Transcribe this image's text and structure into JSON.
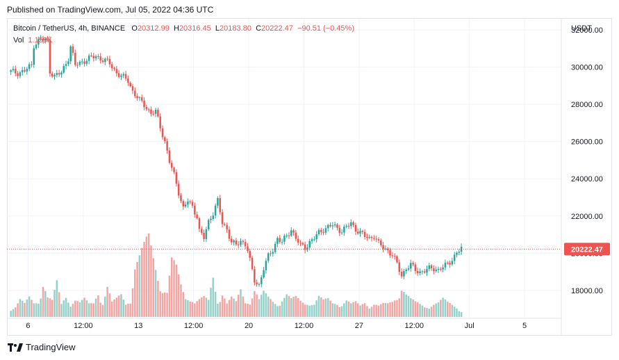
{
  "header": {
    "published": "Published on TradingView.com, Jul 05, 2022 04:36 UTC"
  },
  "legend": {
    "symbol": "Bitcoin / TetherUS, 4h, BINANCE",
    "o_label": "O",
    "o": "20312.99",
    "h_label": "H",
    "h": "20316.45",
    "l_label": "L",
    "l": "20183.80",
    "c_label": "C",
    "c": "20222.47",
    "change": "−90.51 (−0.45%)",
    "vol_label": "Vol",
    "vol": "1.159K"
  },
  "footer": {
    "brand": "TradingView"
  },
  "colors": {
    "up": "#26a69a",
    "down": "#ef5350",
    "up_vol": "#93d1c9",
    "down_vol": "#f2a6a4",
    "grid": "#f0f3fa"
  },
  "chart_data": {
    "type": "candlestick",
    "y_axis_unit": "USDT",
    "yticks": [
      18000,
      20000,
      22000,
      24000,
      26000,
      28000,
      30000,
      32000
    ],
    "ytick_labels": [
      "18000.00",
      "20000.00",
      "22000.00",
      "24000.00",
      "26000.00",
      "28000.00",
      "30000.00",
      "32000.00"
    ],
    "ylim": [
      16500,
      32600
    ],
    "x_labels": [
      "6",
      "12:00",
      "13",
      "12:00",
      "20",
      "12:00",
      "27",
      "12:00",
      "Jul",
      "5"
    ],
    "x_label_bar_index": [
      8,
      32,
      56,
      80,
      104,
      128,
      152,
      176,
      200,
      224
    ],
    "last_price": 20222.47,
    "last_price_label": "20222.47",
    "price_series": [
      [
        0,
        29750
      ],
      [
        3,
        29700
      ],
      [
        6,
        29800
      ],
      [
        9,
        30100
      ],
      [
        10,
        31200
      ],
      [
        13,
        31500
      ],
      [
        16,
        31400
      ],
      [
        17,
        29800
      ],
      [
        19,
        29500
      ],
      [
        22,
        29700
      ],
      [
        25,
        30500
      ],
      [
        26,
        31100
      ],
      [
        28,
        30100
      ],
      [
        31,
        30300
      ],
      [
        34,
        30450
      ],
      [
        37,
        30600
      ],
      [
        40,
        30400
      ],
      [
        43,
        30200
      ],
      [
        46,
        29700
      ],
      [
        48,
        29500
      ],
      [
        51,
        29300
      ],
      [
        53,
        28700
      ],
      [
        56,
        28200
      ],
      [
        58,
        28000
      ],
      [
        61,
        27500
      ],
      [
        63,
        27600
      ],
      [
        65,
        26800
      ],
      [
        67,
        26000
      ],
      [
        69,
        24900
      ],
      [
        71,
        24200
      ],
      [
        73,
        23300
      ],
      [
        75,
        22400
      ],
      [
        77,
        22800
      ],
      [
        79,
        22500
      ],
      [
        81,
        22000
      ],
      [
        82,
        21200
      ],
      [
        84,
        20800
      ],
      [
        86,
        21700
      ],
      [
        88,
        22200
      ],
      [
        90,
        22800
      ],
      [
        92,
        21600
      ],
      [
        94,
        21300
      ],
      [
        96,
        20600
      ],
      [
        98,
        20400
      ],
      [
        100,
        20650
      ],
      [
        102,
        20500
      ],
      [
        103,
        20200
      ],
      [
        105,
        19000
      ],
      [
        106,
        18500
      ],
      [
        108,
        18300
      ],
      [
        110,
        19200
      ],
      [
        112,
        19800
      ],
      [
        114,
        20200
      ],
      [
        116,
        20800
      ],
      [
        118,
        20600
      ],
      [
        120,
        20900
      ],
      [
        122,
        21300
      ],
      [
        124,
        20800
      ],
      [
        126,
        20400
      ],
      [
        128,
        20300
      ],
      [
        130,
        20600
      ],
      [
        132,
        20800
      ],
      [
        134,
        21100
      ],
      [
        136,
        21300
      ],
      [
        138,
        21400
      ],
      [
        140,
        21500
      ],
      [
        142,
        21350
      ],
      [
        144,
        21200
      ],
      [
        146,
        21400
      ],
      [
        148,
        21600
      ],
      [
        150,
        21300
      ],
      [
        152,
        21100
      ],
      [
        154,
        20900
      ],
      [
        156,
        20800
      ],
      [
        158,
        20950
      ],
      [
        160,
        20500
      ],
      [
        162,
        20300
      ],
      [
        164,
        20150
      ],
      [
        166,
        19900
      ],
      [
        168,
        19400
      ],
      [
        170,
        18800
      ],
      [
        172,
        19200
      ],
      [
        174,
        19350
      ],
      [
        176,
        19100
      ],
      [
        178,
        19000
      ],
      [
        180,
        19050
      ],
      [
        182,
        19150
      ],
      [
        184,
        19200
      ],
      [
        186,
        19100
      ],
      [
        188,
        19250
      ],
      [
        190,
        19400
      ],
      [
        192,
        19700
      ],
      [
        194,
        20000
      ],
      [
        196,
        20250
      ]
    ],
    "volume_series": [
      [
        0,
        6
      ],
      [
        2,
        7
      ],
      [
        4,
        11
      ],
      [
        6,
        8
      ],
      [
        8,
        12
      ],
      [
        10,
        9
      ],
      [
        12,
        11
      ],
      [
        14,
        25
      ],
      [
        16,
        13
      ],
      [
        18,
        10
      ],
      [
        20,
        21
      ],
      [
        22,
        8
      ],
      [
        24,
        14
      ],
      [
        26,
        10
      ],
      [
        28,
        12
      ],
      [
        30,
        9
      ],
      [
        32,
        11
      ],
      [
        34,
        8
      ],
      [
        36,
        9
      ],
      [
        38,
        18
      ],
      [
        40,
        10
      ],
      [
        42,
        20
      ],
      [
        44,
        9
      ],
      [
        46,
        11
      ],
      [
        48,
        14
      ],
      [
        50,
        9
      ],
      [
        52,
        13
      ],
      [
        54,
        35
      ],
      [
        56,
        38
      ],
      [
        58,
        43
      ],
      [
        60,
        49
      ],
      [
        62,
        39
      ],
      [
        64,
        30
      ],
      [
        66,
        20
      ],
      [
        68,
        16
      ],
      [
        70,
        35
      ],
      [
        72,
        30
      ],
      [
        74,
        20
      ],
      [
        76,
        13
      ],
      [
        78,
        15
      ],
      [
        80,
        10
      ],
      [
        82,
        11
      ],
      [
        84,
        12
      ],
      [
        86,
        10
      ],
      [
        88,
        26
      ],
      [
        90,
        11
      ],
      [
        92,
        18
      ],
      [
        94,
        9
      ],
      [
        96,
        12
      ],
      [
        98,
        9
      ],
      [
        100,
        17
      ],
      [
        102,
        10
      ],
      [
        104,
        12
      ],
      [
        106,
        19
      ],
      [
        108,
        11
      ],
      [
        110,
        15
      ],
      [
        112,
        12
      ],
      [
        114,
        10
      ],
      [
        116,
        9
      ],
      [
        118,
        13
      ],
      [
        120,
        15
      ],
      [
        122,
        11
      ],
      [
        124,
        12
      ],
      [
        126,
        10
      ],
      [
        128,
        9
      ],
      [
        130,
        11
      ],
      [
        132,
        9
      ],
      [
        134,
        13
      ],
      [
        136,
        10
      ],
      [
        138,
        11
      ],
      [
        140,
        9
      ],
      [
        142,
        10
      ],
      [
        144,
        9
      ],
      [
        146,
        11
      ],
      [
        148,
        8
      ],
      [
        150,
        9
      ],
      [
        152,
        7
      ],
      [
        154,
        10
      ],
      [
        156,
        8
      ],
      [
        158,
        9
      ],
      [
        160,
        7
      ],
      [
        162,
        8
      ],
      [
        164,
        8
      ],
      [
        166,
        10
      ],
      [
        168,
        14
      ],
      [
        170,
        22
      ],
      [
        172,
        15
      ],
      [
        174,
        11
      ],
      [
        176,
        9
      ],
      [
        178,
        8
      ],
      [
        180,
        7
      ],
      [
        182,
        8
      ],
      [
        184,
        9
      ],
      [
        186,
        9
      ],
      [
        188,
        11
      ],
      [
        190,
        9
      ],
      [
        192,
        8
      ],
      [
        194,
        7
      ],
      [
        196,
        4
      ]
    ]
  }
}
